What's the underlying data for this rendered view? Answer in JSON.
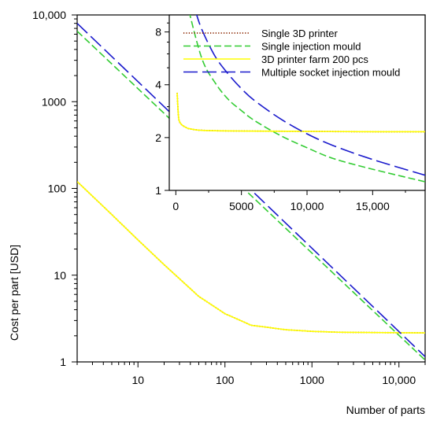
{
  "chart_data": [
    {
      "type": "line",
      "xlabel": "Number of parts",
      "ylabel": "Cost per part [USD]",
      "xscale": "log",
      "yscale": "log",
      "xlim": [
        2,
        20000
      ],
      "ylim": [
        1,
        10000
      ],
      "xticks": [
        10,
        100,
        1000,
        10000
      ],
      "xtick_labels": [
        "10",
        "100",
        "1000",
        "10,000"
      ],
      "yticks": [
        1,
        10,
        100,
        1000,
        10000
      ],
      "ytick_labels": [
        "1",
        "10",
        "100",
        "1000",
        "10,000"
      ],
      "grid": false,
      "series": [
        {
          "name": "Single 3D printer",
          "color": "#8B2500",
          "dash": "dotted",
          "x": [
            2,
            5,
            10,
            20,
            50,
            100,
            200,
            500,
            1000,
            2000,
            5000,
            10000,
            20000
          ],
          "y": [
            120,
            50,
            25.5,
            13.2,
            5.7,
            3.6,
            2.65,
            2.35,
            2.25,
            2.2,
            2.18,
            2.17,
            2.16
          ]
        },
        {
          "name": "Single injection mould",
          "color": "#33CC33",
          "dash": "dashed",
          "x": [
            2,
            20000
          ],
          "y": [
            6500,
            1.05
          ]
        },
        {
          "name": "3D printer farm 200 pcs",
          "color": "#FFFF00",
          "dash": "solid",
          "x": [
            2,
            5,
            10,
            20,
            50,
            100,
            200,
            500,
            1000,
            2000,
            5000,
            10000,
            20000
          ],
          "y": [
            120,
            50,
            25.5,
            13.2,
            5.7,
            3.6,
            2.65,
            2.35,
            2.25,
            2.2,
            2.18,
            2.17,
            2.16
          ]
        },
        {
          "name": "Multiple socket injection mould",
          "color": "#1A1ACC",
          "dash": "longdash",
          "x": [
            2,
            20000
          ],
          "y": [
            8000,
            1.15
          ]
        }
      ]
    },
    {
      "type": "line",
      "inset": true,
      "xscale": "linear",
      "yscale": "log",
      "xlim": [
        -500,
        19000
      ],
      "ylim": [
        1,
        10
      ],
      "xticks": [
        0,
        5000,
        10000,
        15000
      ],
      "xtick_labels": [
        "0",
        "5000",
        "10,000",
        "15,000"
      ],
      "yticks": [
        1,
        2,
        4,
        8
      ],
      "ytick_labels": [
        "1",
        "2",
        "4",
        "8"
      ],
      "legend": "top-right",
      "series": [
        {
          "name": "Single 3D printer",
          "color": "#8B2500",
          "dash": "dotted",
          "x": [
            100,
            200,
            300,
            500,
            800,
            1000,
            2000,
            5000,
            10000,
            15000,
            19000
          ],
          "y": [
            3.6,
            2.65,
            2.45,
            2.35,
            2.28,
            2.25,
            2.2,
            2.18,
            2.17,
            2.16,
            2.16
          ]
        },
        {
          "name": "Single injection mould",
          "color": "#33CC33",
          "dash": "dashed",
          "x": [
            1000,
            2000,
            3000,
            4000,
            5000,
            6000,
            8000,
            10000,
            12000,
            15000,
            19000
          ],
          "y": [
            10.5,
            5.6,
            4.1,
            3.3,
            2.85,
            2.5,
            2.05,
            1.75,
            1.52,
            1.32,
            1.12
          ]
        },
        {
          "name": "3D printer farm 200 pcs",
          "color": "#FFFF00",
          "dash": "solid",
          "x": [
            100,
            200,
            300,
            500,
            800,
            1000,
            2000,
            5000,
            10000,
            15000,
            19000
          ],
          "y": [
            3.6,
            2.65,
            2.45,
            2.35,
            2.28,
            2.25,
            2.2,
            2.18,
            2.17,
            2.16,
            2.16
          ]
        },
        {
          "name": "Multiple socket injection mould",
          "color": "#1A1ACC",
          "dash": "longdash",
          "x": [
            1500,
            2000,
            3000,
            4000,
            5000,
            6000,
            8000,
            10000,
            12000,
            15000,
            19000
          ],
          "y": [
            10.5,
            8.2,
            5.8,
            4.6,
            3.8,
            3.25,
            2.55,
            2.1,
            1.8,
            1.5,
            1.22
          ]
        }
      ]
    }
  ]
}
